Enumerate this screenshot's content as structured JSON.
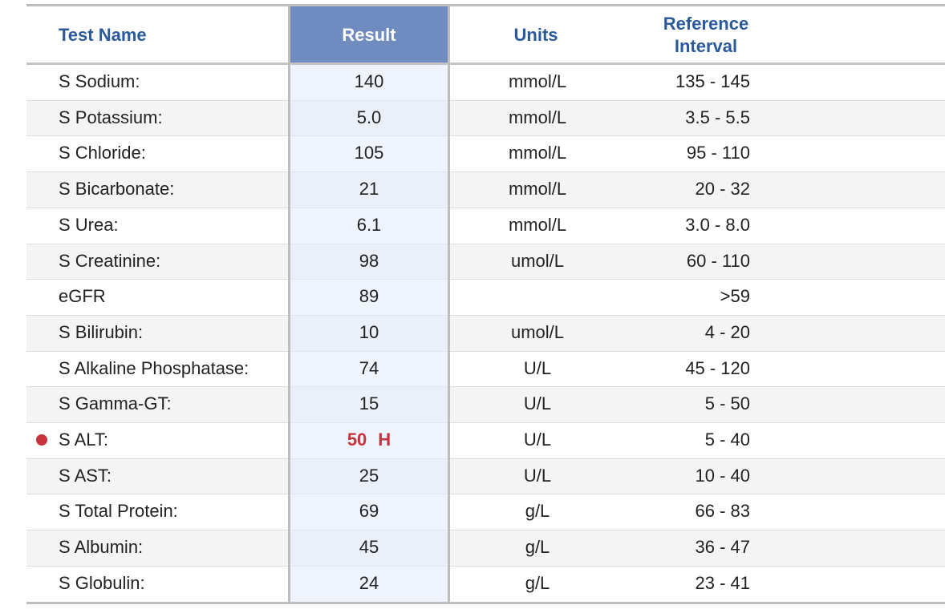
{
  "table": {
    "columns": [
      "Test Name",
      "Result",
      "Units",
      "Reference\nInterval"
    ],
    "rows": [
      {
        "name": "S Sodium:",
        "result": "140",
        "units": "mmol/L",
        "reference": "135 - 145"
      },
      {
        "name": "S Potassium:",
        "result": "5.0",
        "units": "mmol/L",
        "reference": "3.5 - 5.5"
      },
      {
        "name": "S Chloride:",
        "result": "105",
        "units": "mmol/L",
        "reference": "95 - 110"
      },
      {
        "name": "S Bicarbonate:",
        "result": "21",
        "units": "mmol/L",
        "reference": "20 - 32"
      },
      {
        "name": "S Urea:",
        "result": "6.1",
        "units": "mmol/L",
        "reference": "3.0 - 8.0"
      },
      {
        "name": "S Creatinine:",
        "result": "98",
        "units": "umol/L",
        "reference": "60 - 110"
      },
      {
        "name": "eGFR",
        "result": "89",
        "reference": ">59"
      },
      {
        "name": "S Bilirubin:",
        "result": "10",
        "units": "umol/L",
        "reference": "4 - 20"
      },
      {
        "name": "S Alkaline Phosphatase:",
        "result": "74",
        "units": "U/L",
        "reference": "45 - 120"
      },
      {
        "name": "S Gamma-GT:",
        "result": "15",
        "units": "U/L",
        "reference": "5 - 50"
      },
      {
        "name": "S ALT:",
        "result": "50",
        "flag": "H",
        "units": "U/L",
        "reference": "5 - 40"
      },
      {
        "name": "S AST:",
        "result": "25",
        "units": "U/L",
        "reference": "10 - 40"
      },
      {
        "name": "S Total Protein:",
        "result": "69",
        "units": "g/L",
        "reference": "66 - 83"
      },
      {
        "name": "S Albumin:",
        "result": "45",
        "units": "g/L",
        "reference": "36 - 47"
      },
      {
        "name": "S Globulin:",
        "result": "24",
        "units": "g/L",
        "reference": "23 - 41"
      }
    ]
  }
}
